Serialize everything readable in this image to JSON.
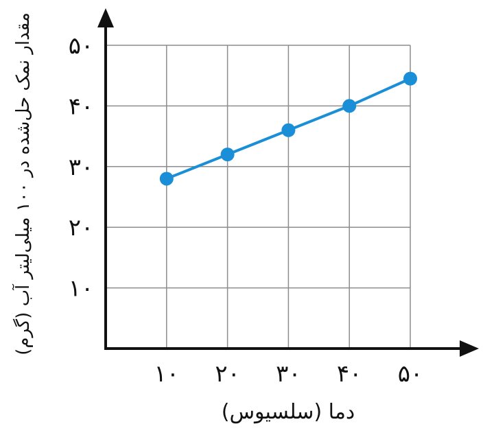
{
  "chart_data": {
    "type": "line",
    "title": "",
    "xlabel": "دما (سلسیوس)",
    "ylabel": "مقدار نمک حل‌شده در ۱۰۰ میلی‌لیتر آب (گرم)",
    "x": [
      10,
      20,
      30,
      40,
      50
    ],
    "x_tick_labels": [
      "۱۰",
      "۲۰",
      "۳۰",
      "۴۰",
      "۵۰"
    ],
    "y_tick_labels": [
      "۱۰",
      "۲۰",
      "۳۰",
      "۴۰",
      "۵۰"
    ],
    "y_ticks": [
      10,
      20,
      30,
      40,
      50
    ],
    "series": [
      {
        "values": [
          28,
          32,
          36,
          40,
          44.5
        ]
      }
    ],
    "xlim": [
      0,
      50
    ],
    "ylim": [
      0,
      50
    ],
    "grid": true,
    "legend": "none",
    "colors": {
      "line": "#1a8fd8",
      "marker": "#1a8fd8",
      "axis": "#111111",
      "grid": "#8c8c8c"
    }
  }
}
